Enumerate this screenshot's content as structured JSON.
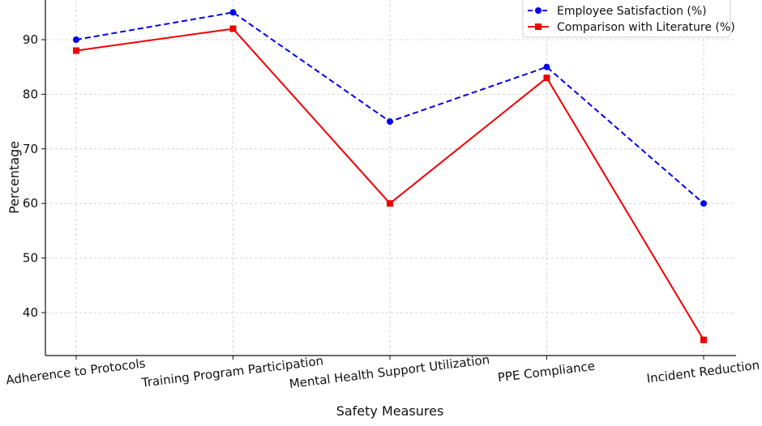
{
  "chart_data": {
    "type": "line",
    "title": "",
    "xlabel": "Safety Measures",
    "ylabel": "Percentage",
    "categories": [
      "Adherence to Protocols",
      "Training Program Participation",
      "Mental Health Support Utilization",
      "PPE Compliance",
      "Incident Reduction"
    ],
    "ylim": [
      32,
      96
    ],
    "yticks": [
      40,
      50,
      60,
      70,
      80,
      90
    ],
    "grid": true,
    "legend_position": "top-right",
    "series": [
      {
        "name": "Employee Satisfaction (%)",
        "values": [
          90,
          95,
          75,
          85,
          60
        ],
        "color": "#0000ee",
        "line_style": "dashed",
        "marker": "circle"
      },
      {
        "name": "Comparison with Literature (%)",
        "values": [
          88,
          92,
          60,
          83,
          35
        ],
        "color": "#ee0000",
        "line_style": "solid",
        "marker": "square"
      }
    ]
  }
}
